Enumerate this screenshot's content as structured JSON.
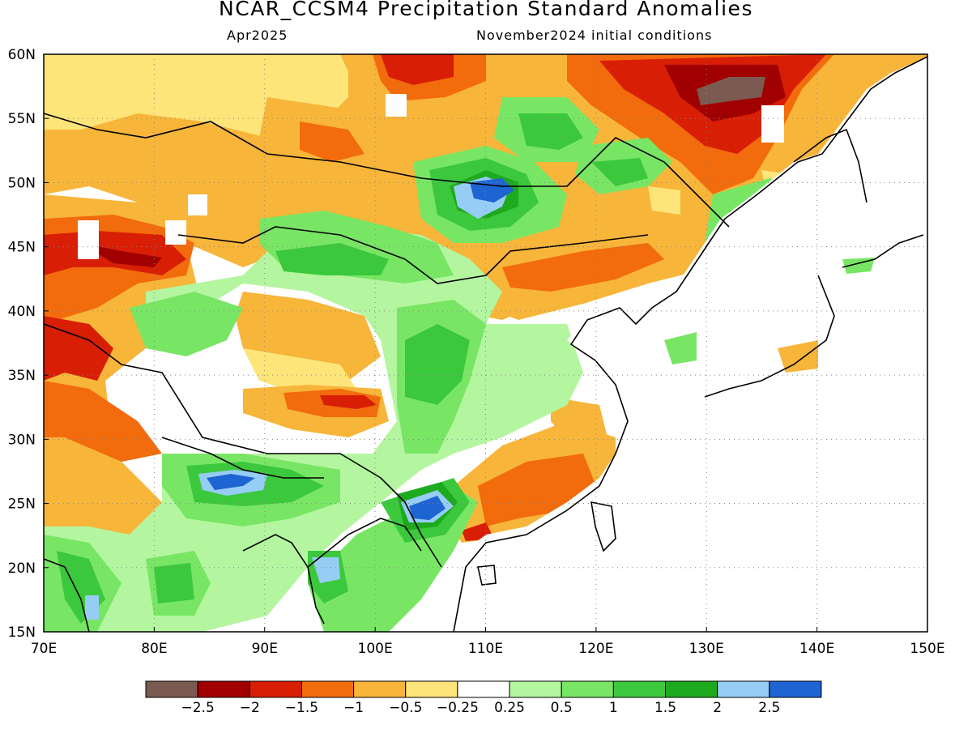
{
  "title": "NCAR_CCSM4 Precipitation Standard Anomalies",
  "subtitle_left": "Apr2025",
  "subtitle_right": "November2024 initial conditions",
  "colors": {
    "m3": "#7b5a52",
    "m25": "#a00000",
    "m2": "#d81e05",
    "m15": "#f26b0c",
    "m1": "#f7b53a",
    "m05": "#fde57a",
    "zero": "#ffffff",
    "p025": "#b4f5a0",
    "p05": "#78e664",
    "p1": "#3cc83c",
    "p15": "#1eaa1e",
    "p2": "#96cdf5",
    "p25": "#1e64d2"
  },
  "chart_data": {
    "type": "heatmap",
    "variable": "Precipitation Standard Anomalies",
    "model": "NCAR_CCSM4",
    "valid_month": "Apr2025",
    "initial_conditions": "November2024",
    "lon_range": [
      70,
      150
    ],
    "lat_range": [
      15,
      60
    ],
    "x_ticks": [
      "70E",
      "80E",
      "90E",
      "100E",
      "110E",
      "120E",
      "130E",
      "140E",
      "150E"
    ],
    "y_ticks": [
      "15N",
      "20N",
      "25N",
      "30N",
      "35N",
      "40N",
      "45N",
      "50N",
      "55N",
      "60N"
    ],
    "grid": true,
    "colorbar": {
      "labels": [
        "−2.5",
        "−2",
        "−1.5",
        "−1",
        "−0.5",
        "−0.25",
        "0.25",
        "0.5",
        "1",
        "1.5",
        "2",
        "2.5"
      ],
      "colors": [
        "#7b5a52",
        "#a00000",
        "#d81e05",
        "#f26b0c",
        "#f7b53a",
        "#fde57a",
        "#ffffff",
        "#b4f5a0",
        "#78e664",
        "#3cc83c",
        "#1eaa1e",
        "#96cdf5",
        "#1e64d2"
      ]
    }
  }
}
